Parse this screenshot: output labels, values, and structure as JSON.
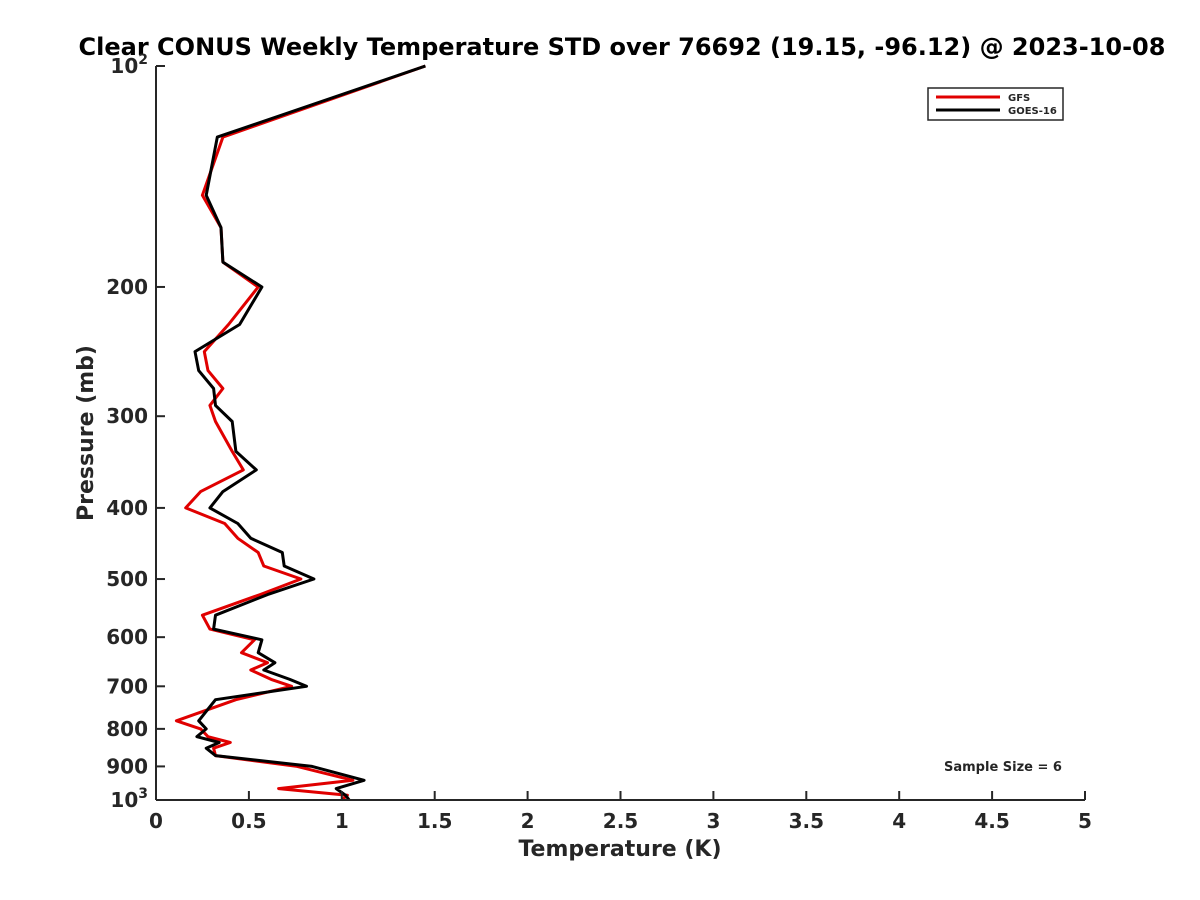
{
  "chart_data": {
    "type": "line",
    "title": "Clear CONUS Weekly Temperature STD over 76692 (19.15, -96.12) @ 2023-10-08",
    "xlabel": "Temperature (K)",
    "ylabel": "Pressure (mb)",
    "xlim": [
      0,
      5
    ],
    "ylim": [
      100,
      1000
    ],
    "y_scale": "log",
    "y_direction": "reversed",
    "x_ticks": [
      "0",
      "0.5",
      "1",
      "1.5",
      "2",
      "2.5",
      "3",
      "3.5",
      "4",
      "4.5",
      "5"
    ],
    "y_ticks": [
      {
        "value": 100,
        "base": "10",
        "exp": "2"
      },
      {
        "value": 200,
        "label": "200"
      },
      {
        "value": 300,
        "label": "300"
      },
      {
        "value": 400,
        "label": "400"
      },
      {
        "value": 500,
        "label": "500"
      },
      {
        "value": 600,
        "label": "600"
      },
      {
        "value": 700,
        "label": "700"
      },
      {
        "value": 800,
        "label": "800"
      },
      {
        "value": 900,
        "label": "900"
      },
      {
        "value": 1000,
        "base": "10",
        "exp": "3"
      }
    ],
    "legend_position": "top-right",
    "annotation": "Sample Size = 6",
    "series": [
      {
        "name": "GFS",
        "color": "#e00000",
        "points": [
          [
            1.45,
            100
          ],
          [
            0.36,
            125
          ],
          [
            0.25,
            150
          ],
          [
            0.35,
            166
          ],
          [
            0.36,
            185
          ],
          [
            0.55,
            200
          ],
          [
            0.39,
            225
          ],
          [
            0.26,
            245
          ],
          [
            0.28,
            260
          ],
          [
            0.36,
            275
          ],
          [
            0.29,
            290
          ],
          [
            0.32,
            305
          ],
          [
            0.41,
            335
          ],
          [
            0.47,
            355
          ],
          [
            0.24,
            380
          ],
          [
            0.16,
            400
          ],
          [
            0.37,
            420
          ],
          [
            0.44,
            440
          ],
          [
            0.55,
            460
          ],
          [
            0.58,
            480
          ],
          [
            0.78,
            500
          ],
          [
            0.56,
            525
          ],
          [
            0.25,
            560
          ],
          [
            0.29,
            585
          ],
          [
            0.53,
            605
          ],
          [
            0.46,
            630
          ],
          [
            0.6,
            650
          ],
          [
            0.51,
            665
          ],
          [
            0.62,
            685
          ],
          [
            0.73,
            700
          ],
          [
            0.43,
            730
          ],
          [
            0.11,
            780
          ],
          [
            0.24,
            800
          ],
          [
            0.28,
            820
          ],
          [
            0.4,
            835
          ],
          [
            0.31,
            850
          ],
          [
            0.32,
            870
          ],
          [
            0.76,
            900
          ],
          [
            1.06,
            940
          ],
          [
            0.66,
            965
          ],
          [
            1.03,
            985
          ],
          [
            1.0,
            1000
          ]
        ]
      },
      {
        "name": "GOES-16",
        "color": "#000000",
        "points": [
          [
            1.45,
            100
          ],
          [
            0.33,
            125
          ],
          [
            0.27,
            150
          ],
          [
            0.35,
            166
          ],
          [
            0.36,
            185
          ],
          [
            0.57,
            200
          ],
          [
            0.45,
            225
          ],
          [
            0.21,
            245
          ],
          [
            0.23,
            260
          ],
          [
            0.31,
            275
          ],
          [
            0.32,
            290
          ],
          [
            0.41,
            305
          ],
          [
            0.43,
            335
          ],
          [
            0.54,
            355
          ],
          [
            0.36,
            380
          ],
          [
            0.29,
            400
          ],
          [
            0.44,
            420
          ],
          [
            0.51,
            440
          ],
          [
            0.68,
            460
          ],
          [
            0.69,
            480
          ],
          [
            0.85,
            500
          ],
          [
            0.6,
            525
          ],
          [
            0.32,
            560
          ],
          [
            0.31,
            585
          ],
          [
            0.57,
            605
          ],
          [
            0.55,
            630
          ],
          [
            0.64,
            650
          ],
          [
            0.58,
            665
          ],
          [
            0.72,
            685
          ],
          [
            0.81,
            700
          ],
          [
            0.32,
            730
          ],
          [
            0.23,
            780
          ],
          [
            0.27,
            800
          ],
          [
            0.22,
            820
          ],
          [
            0.34,
            835
          ],
          [
            0.27,
            850
          ],
          [
            0.32,
            870
          ],
          [
            0.84,
            900
          ],
          [
            1.12,
            940
          ],
          [
            0.97,
            965
          ],
          [
            1.02,
            985
          ],
          [
            1.04,
            1000
          ]
        ]
      }
    ]
  }
}
